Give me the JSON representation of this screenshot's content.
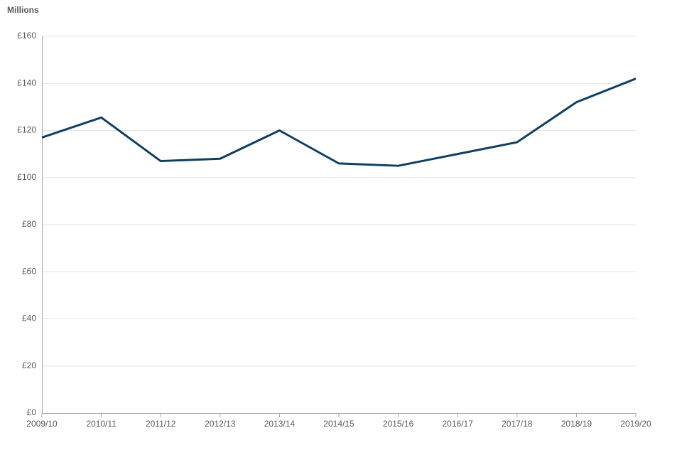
{
  "chart_data": {
    "type": "line",
    "y_axis_label": "Millions",
    "categories": [
      "2009/10",
      "2010/11",
      "2011/12",
      "2012/13",
      "2013/14",
      "2014/15",
      "2015/16",
      "2016/17",
      "2017/18",
      "2018/19",
      "2019/20"
    ],
    "series": [
      {
        "color": "#0e3f63",
        "values": [
          117,
          125.5,
          107,
          108,
          120,
          106,
          105,
          110,
          115,
          132,
          142
        ]
      }
    ],
    "ylim": [
      0,
      160
    ],
    "yticks": [
      {
        "value": 0,
        "label": "£0"
      },
      {
        "value": 20,
        "label": "£20"
      },
      {
        "value": 40,
        "label": "£40"
      },
      {
        "value": 60,
        "label": "£60"
      },
      {
        "value": 80,
        "label": "£80"
      },
      {
        "value": 100,
        "label": "£100"
      },
      {
        "value": 120,
        "label": "£120"
      },
      {
        "value": 140,
        "label": "£140"
      },
      {
        "value": 160,
        "label": "£160"
      }
    ],
    "grid": true
  }
}
